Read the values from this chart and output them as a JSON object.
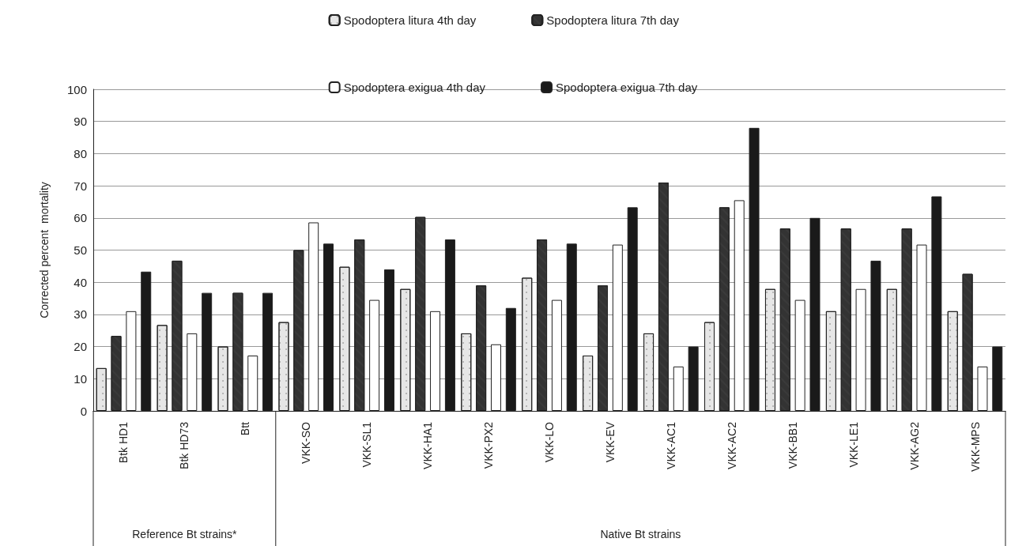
{
  "chart_data": {
    "type": "bar",
    "ylabel": "Corrected percent  mortality",
    "categories": [
      "Btk HD1",
      "Btk HD73",
      "Btt",
      "VKK-SO",
      "VKK-SL1",
      "VKK-HA1",
      "VKK-PX2",
      "VKK-LO",
      "VKK-EV",
      "VKK-AC1",
      "VKK-AC2",
      "VKK-BB1",
      "VKK-LE1",
      "VKK-AG2",
      "VKK-MPS"
    ],
    "series": [
      {
        "name": "Spodoptera litura 4th day",
        "color": "#e6e6e6",
        "values": [
          13.3,
          26.7,
          20,
          27.6,
          44.8,
          37.9,
          24.1,
          41.4,
          17.2,
          24.1,
          27.6,
          37.9,
          31,
          37.9,
          31
        ]
      },
      {
        "name": "Spodoptera litura 7th day",
        "color": "#333333",
        "values": [
          23.3,
          46.7,
          36.7,
          50,
          53.3,
          60.3,
          39,
          53.3,
          39,
          71,
          63.3,
          56.7,
          56.7,
          56.7,
          42.6
        ]
      },
      {
        "name": "Spodoptera exigua 4th day",
        "color": "#ffffff",
        "values": [
          31,
          24.1,
          17.2,
          58.6,
          34.5,
          31,
          20.7,
          34.5,
          51.7,
          13.8,
          65.5,
          34.5,
          37.9,
          51.7,
          13.8
        ]
      },
      {
        "name": "Spodoptera exigua 7th day",
        "color": "#1a1a1a",
        "values": [
          43.3,
          36.7,
          36.7,
          52,
          44,
          53.3,
          32,
          52,
          63.3,
          20,
          88,
          60,
          46.7,
          66.7,
          20
        ]
      }
    ],
    "ylim": [
      0,
      100
    ],
    "yticks": [
      0,
      10,
      20,
      30,
      40,
      50,
      60,
      70,
      80,
      90,
      100
    ],
    "grid": "y",
    "legend": "top",
    "annotations": [
      "Reference Bt strains*",
      "Native Bt strains"
    ]
  }
}
